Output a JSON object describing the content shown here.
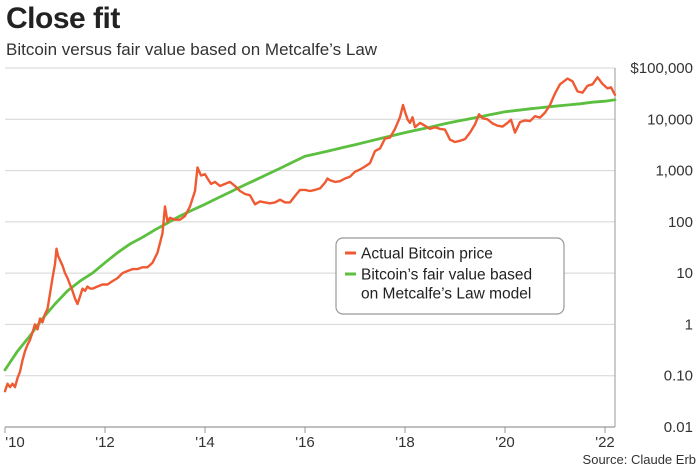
{
  "header": {
    "title": "Close fit",
    "subtitle": "Bitcoin versus fair value based on Metcalfe’s Law"
  },
  "footer": {
    "source": "Source: Claude Erb"
  },
  "colors": {
    "actual": "#f05a32",
    "fair_value": "#5cbf3f",
    "grid": "#d4d4d4",
    "axis": "#999999"
  },
  "chart_data": {
    "type": "line",
    "title": "Close fit",
    "subtitle": "Bitcoin versus fair value based on Metcalfe’s Law",
    "y_scale": "log",
    "ylim": [
      0.01,
      100000
    ],
    "xlim": [
      2010.0,
      2022.2
    ],
    "x_ticks": [
      2010,
      2012,
      2014,
      2016,
      2018,
      2020,
      2022
    ],
    "x_tick_labels": [
      "'10",
      "'12",
      "'14",
      "'16",
      "'18",
      "'20",
      "'22"
    ],
    "y_ticks": [
      0.01,
      0.1,
      1,
      10,
      100,
      1000,
      10000,
      100000
    ],
    "y_tick_labels": [
      "0.01",
      "0.10",
      "1",
      "10",
      "100",
      "1,000",
      "10,000",
      "$100,000"
    ],
    "grid": true,
    "legend_position": "center-right",
    "series": [
      {
        "name": "Actual Bitcoin price",
        "color": "#f05a32",
        "points": [
          [
            2010.0,
            0.05
          ],
          [
            2010.05,
            0.07
          ],
          [
            2010.1,
            0.06
          ],
          [
            2010.15,
            0.07
          ],
          [
            2010.2,
            0.06
          ],
          [
            2010.25,
            0.09
          ],
          [
            2010.3,
            0.12
          ],
          [
            2010.35,
            0.2
          ],
          [
            2010.4,
            0.3
          ],
          [
            2010.45,
            0.4
          ],
          [
            2010.5,
            0.5
          ],
          [
            2010.55,
            0.7
          ],
          [
            2010.6,
            1.0
          ],
          [
            2010.65,
            0.8
          ],
          [
            2010.7,
            1.3
          ],
          [
            2010.75,
            1.1
          ],
          [
            2010.8,
            1.6
          ],
          [
            2010.85,
            2.0
          ],
          [
            2010.9,
            4.0
          ],
          [
            2010.95,
            8.0
          ],
          [
            2011.0,
            15
          ],
          [
            2011.03,
            30
          ],
          [
            2011.06,
            22
          ],
          [
            2011.1,
            18
          ],
          [
            2011.15,
            14
          ],
          [
            2011.2,
            10
          ],
          [
            2011.25,
            8
          ],
          [
            2011.3,
            6
          ],
          [
            2011.35,
            4.5
          ],
          [
            2011.4,
            3.2
          ],
          [
            2011.45,
            2.5
          ],
          [
            2011.5,
            3.5
          ],
          [
            2011.55,
            5
          ],
          [
            2011.6,
            4.5
          ],
          [
            2011.65,
            5.5
          ],
          [
            2011.7,
            5
          ],
          [
            2011.75,
            5
          ],
          [
            2011.85,
            5.5
          ],
          [
            2011.95,
            6
          ],
          [
            2012.05,
            6
          ],
          [
            2012.15,
            7
          ],
          [
            2012.25,
            8
          ],
          [
            2012.35,
            10
          ],
          [
            2012.45,
            11
          ],
          [
            2012.55,
            12
          ],
          [
            2012.65,
            12
          ],
          [
            2012.75,
            13
          ],
          [
            2012.85,
            13
          ],
          [
            2012.95,
            16
          ],
          [
            2013.05,
            25
          ],
          [
            2013.15,
            60
          ],
          [
            2013.2,
            200
          ],
          [
            2013.25,
            100
          ],
          [
            2013.3,
            120
          ],
          [
            2013.4,
            110
          ],
          [
            2013.5,
            110
          ],
          [
            2013.6,
            130
          ],
          [
            2013.7,
            200
          ],
          [
            2013.8,
            400
          ],
          [
            2013.85,
            1150
          ],
          [
            2013.92,
            800
          ],
          [
            2014.0,
            850
          ],
          [
            2014.05,
            700
          ],
          [
            2014.12,
            550
          ],
          [
            2014.2,
            600
          ],
          [
            2014.3,
            500
          ],
          [
            2014.4,
            550
          ],
          [
            2014.5,
            600
          ],
          [
            2014.6,
            500
          ],
          [
            2014.7,
            400
          ],
          [
            2014.8,
            350
          ],
          [
            2014.9,
            330
          ],
          [
            2015.0,
            220
          ],
          [
            2015.1,
            250
          ],
          [
            2015.2,
            240
          ],
          [
            2015.3,
            230
          ],
          [
            2015.4,
            240
          ],
          [
            2015.5,
            270
          ],
          [
            2015.6,
            240
          ],
          [
            2015.7,
            240
          ],
          [
            2015.8,
            320
          ],
          [
            2015.9,
            420
          ],
          [
            2016.0,
            420
          ],
          [
            2016.1,
            400
          ],
          [
            2016.2,
            420
          ],
          [
            2016.3,
            450
          ],
          [
            2016.4,
            580
          ],
          [
            2016.45,
            700
          ],
          [
            2016.5,
            650
          ],
          [
            2016.6,
            600
          ],
          [
            2016.7,
            620
          ],
          [
            2016.8,
            700
          ],
          [
            2016.9,
            760
          ],
          [
            2017.0,
            950
          ],
          [
            2017.1,
            1050
          ],
          [
            2017.2,
            1200
          ],
          [
            2017.3,
            1400
          ],
          [
            2017.4,
            2400
          ],
          [
            2017.5,
            2700
          ],
          [
            2017.6,
            4200
          ],
          [
            2017.7,
            4400
          ],
          [
            2017.8,
            6500
          ],
          [
            2017.9,
            11000
          ],
          [
            2017.96,
            19000
          ],
          [
            2018.0,
            14000
          ],
          [
            2018.05,
            10000
          ],
          [
            2018.1,
            8500
          ],
          [
            2018.15,
            11000
          ],
          [
            2018.2,
            7000
          ],
          [
            2018.3,
            8500
          ],
          [
            2018.4,
            7500
          ],
          [
            2018.5,
            6500
          ],
          [
            2018.6,
            7000
          ],
          [
            2018.7,
            6500
          ],
          [
            2018.8,
            6300
          ],
          [
            2018.9,
            4000
          ],
          [
            2019.0,
            3600
          ],
          [
            2019.1,
            3800
          ],
          [
            2019.2,
            4100
          ],
          [
            2019.3,
            5500
          ],
          [
            2019.4,
            8000
          ],
          [
            2019.48,
            12500
          ],
          [
            2019.55,
            10500
          ],
          [
            2019.65,
            10000
          ],
          [
            2019.75,
            8300
          ],
          [
            2019.85,
            7500
          ],
          [
            2019.95,
            7200
          ],
          [
            2020.05,
            8500
          ],
          [
            2020.12,
            9800
          ],
          [
            2020.2,
            5500
          ],
          [
            2020.3,
            8800
          ],
          [
            2020.4,
            9500
          ],
          [
            2020.5,
            9200
          ],
          [
            2020.6,
            11500
          ],
          [
            2020.7,
            10800
          ],
          [
            2020.8,
            13500
          ],
          [
            2020.9,
            19000
          ],
          [
            2021.0,
            32000
          ],
          [
            2021.1,
            48000
          ],
          [
            2021.25,
            62000
          ],
          [
            2021.35,
            55000
          ],
          [
            2021.45,
            35000
          ],
          [
            2021.55,
            33000
          ],
          [
            2021.65,
            45000
          ],
          [
            2021.75,
            48000
          ],
          [
            2021.85,
            66000
          ],
          [
            2021.95,
            49000
          ],
          [
            2022.05,
            40000
          ],
          [
            2022.12,
            42000
          ],
          [
            2022.2,
            30000
          ]
        ]
      },
      {
        "name": "Bitcoin’s fair value based on Metcalfe’s Law model",
        "color": "#5cbf3f",
        "points": [
          [
            2010.0,
            0.13
          ],
          [
            2010.25,
            0.3
          ],
          [
            2010.5,
            0.6
          ],
          [
            2010.75,
            1.3
          ],
          [
            2011.0,
            2.5
          ],
          [
            2011.25,
            4.5
          ],
          [
            2011.5,
            7
          ],
          [
            2011.75,
            10
          ],
          [
            2012.0,
            16
          ],
          [
            2012.25,
            25
          ],
          [
            2012.5,
            37
          ],
          [
            2012.75,
            50
          ],
          [
            2013.0,
            70
          ],
          [
            2013.25,
            95
          ],
          [
            2013.5,
            130
          ],
          [
            2013.75,
            170
          ],
          [
            2014.0,
            220
          ],
          [
            2014.25,
            290
          ],
          [
            2014.5,
            380
          ],
          [
            2014.75,
            500
          ],
          [
            2015.0,
            650
          ],
          [
            2015.25,
            850
          ],
          [
            2015.5,
            1100
          ],
          [
            2015.75,
            1450
          ],
          [
            2016.0,
            1900
          ],
          [
            2016.25,
            2150
          ],
          [
            2016.5,
            2450
          ],
          [
            2016.75,
            2800
          ],
          [
            2017.0,
            3200
          ],
          [
            2017.25,
            3650
          ],
          [
            2017.5,
            4200
          ],
          [
            2017.75,
            4800
          ],
          [
            2018.0,
            5500
          ],
          [
            2018.25,
            6200
          ],
          [
            2018.5,
            7000
          ],
          [
            2018.75,
            8000
          ],
          [
            2019.0,
            9000
          ],
          [
            2019.25,
            10000
          ],
          [
            2019.5,
            11200
          ],
          [
            2019.75,
            12500
          ],
          [
            2020.0,
            14000
          ],
          [
            2020.25,
            15000
          ],
          [
            2020.5,
            16000
          ],
          [
            2020.75,
            17000
          ],
          [
            2021.0,
            18000
          ],
          [
            2021.25,
            19000
          ],
          [
            2021.5,
            20000
          ],
          [
            2021.75,
            21500
          ],
          [
            2022.0,
            22500
          ],
          [
            2022.2,
            24000
          ]
        ]
      }
    ]
  }
}
